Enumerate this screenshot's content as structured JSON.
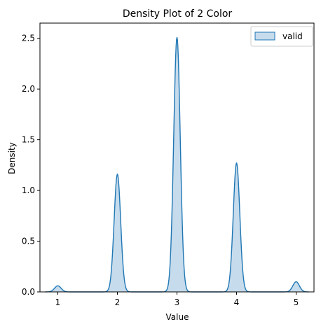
{
  "chart_data": {
    "type": "area",
    "title": "Density Plot of 2 Color",
    "xlabel": "Value",
    "ylabel": "Density",
    "xlim": [
      0.7,
      5.3
    ],
    "ylim": [
      0,
      2.65
    ],
    "xticks": [
      1,
      2,
      3,
      4,
      5
    ],
    "yticks": [
      0.0,
      0.5,
      1.0,
      1.5,
      2.0,
      2.5
    ],
    "ytick_labels": [
      "0.0",
      "0.5",
      "1.0",
      "1.5",
      "2.0",
      "2.5"
    ],
    "grid": false,
    "legend_position": "top-right",
    "series": [
      {
        "name": "valid",
        "color": "#1f77b4",
        "fill_color": "#c6dbec",
        "peaks": [
          {
            "x": 1.0,
            "density": 0.06
          },
          {
            "x": 2.0,
            "density": 1.16
          },
          {
            "x": 3.0,
            "density": 2.51
          },
          {
            "x": 4.0,
            "density": 1.27
          },
          {
            "x": 5.0,
            "density": 0.1
          }
        ],
        "support": [
          0.79,
          5.21
        ]
      }
    ]
  }
}
